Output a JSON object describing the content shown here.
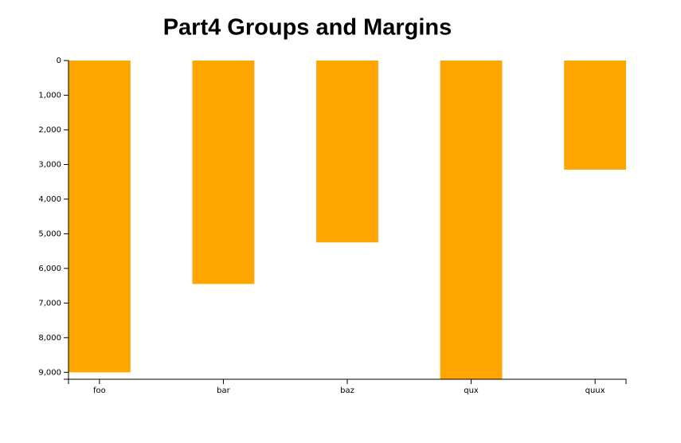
{
  "chart_data": {
    "type": "bar",
    "title": "Part4 Groups and Margins",
    "categories": [
      "foo",
      "bar",
      "baz",
      "qux",
      "quux"
    ],
    "values": [
      9000,
      6450,
      5250,
      9200,
      3150
    ],
    "color": "#ffa500",
    "ylim": [
      0,
      9200
    ],
    "y_inverted": true,
    "yticks": [
      0,
      {
        "value": 1000,
        "label": "1,000"
      },
      {
        "value": 2000,
        "label": "2,000"
      },
      {
        "value": 3000,
        "label": "3,000"
      },
      {
        "value": 4000,
        "label": "4,000"
      },
      {
        "value": 5000,
        "label": "5,000"
      },
      {
        "value": 6000,
        "label": "6,000"
      },
      {
        "value": 7000,
        "label": "7,000"
      },
      {
        "value": 8000,
        "label": "8,000"
      },
      {
        "value": 9000,
        "label": "9,000"
      }
    ],
    "grid": false
  }
}
